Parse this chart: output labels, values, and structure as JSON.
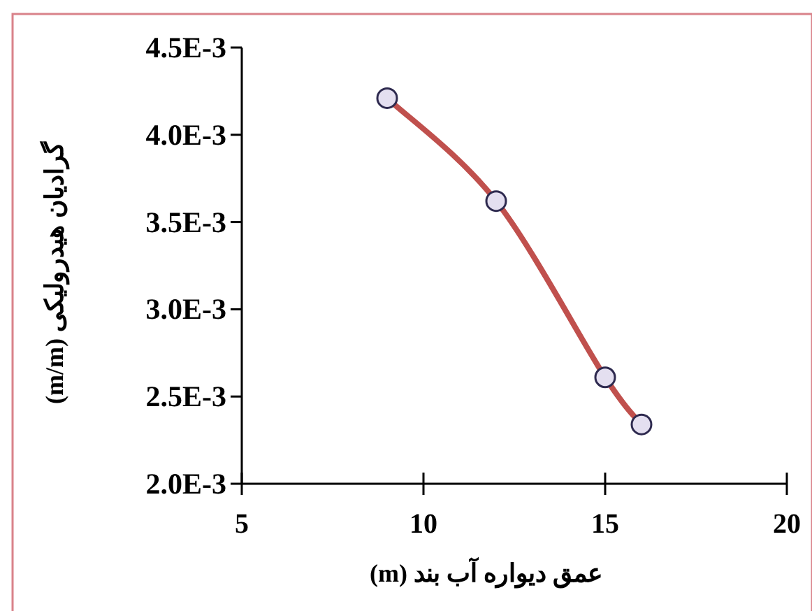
{
  "chart_data": {
    "type": "line",
    "xlabel": "عمق دیواره آب بند (m)",
    "ylabel": "گرادیان هیدرولیکی (m/m)",
    "x": [
      9,
      12,
      15,
      16
    ],
    "series": [
      {
        "color": "#c0504d",
        "values": [
          0.00421,
          0.00362,
          0.00261,
          0.00234
        ]
      }
    ],
    "marker": "circle",
    "xlim": [
      5,
      20
    ],
    "xticks": [
      5,
      10,
      15,
      20
    ],
    "ylim": [
      0.002,
      0.0045
    ],
    "yticks": [
      {
        "value": 0.002,
        "label": "2.0E-3"
      },
      {
        "value": 0.0025,
        "label": "2.5E-3"
      },
      {
        "value": 0.003,
        "label": "3.0E-3"
      },
      {
        "value": 0.0035,
        "label": "3.5E-3"
      },
      {
        "value": 0.004,
        "label": "4.0E-3"
      },
      {
        "value": 0.0045,
        "label": "4.5E-3"
      }
    ]
  }
}
